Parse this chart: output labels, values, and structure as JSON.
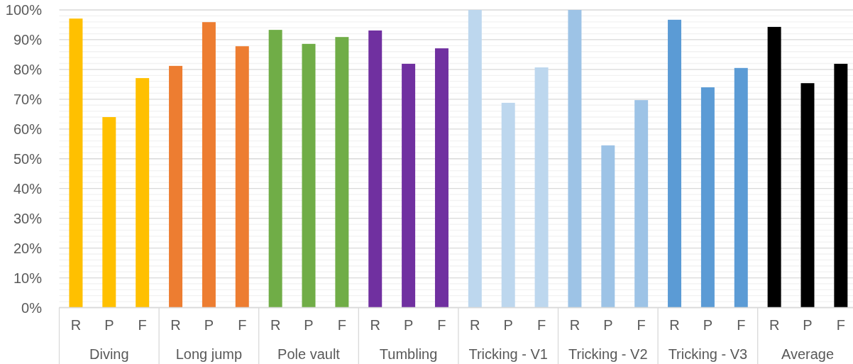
{
  "chart_data": {
    "type": "bar",
    "stacked": true,
    "categories": [
      "R",
      "P",
      "F",
      "R",
      "P",
      "F",
      "R",
      "P",
      "F",
      "R",
      "P",
      "F",
      "R",
      "P",
      "F",
      "R",
      "P",
      "F",
      "R",
      "P",
      "F",
      "R",
      "P",
      "F"
    ],
    "series": [
      {
        "name": "Diving",
        "color": "#ffc000",
        "values": [
          97.1,
          64.0,
          77.1,
          null,
          null,
          null,
          null,
          null,
          null,
          null,
          null,
          null,
          null,
          null,
          null,
          null,
          null,
          null,
          null,
          null,
          null,
          null,
          null,
          null
        ]
      },
      {
        "name": "Long jump",
        "color": "#ed7d31",
        "values": [
          null,
          null,
          null,
          81.2,
          95.9,
          87.8,
          null,
          null,
          null,
          null,
          null,
          null,
          null,
          null,
          null,
          null,
          null,
          null,
          null,
          null,
          null,
          null,
          null,
          null
        ]
      },
      {
        "name": "Pole vault",
        "color": "#70ad47",
        "values": [
          null,
          null,
          null,
          null,
          null,
          null,
          93.3,
          88.6,
          90.9,
          null,
          null,
          null,
          null,
          null,
          null,
          null,
          null,
          null,
          null,
          null,
          null,
          null,
          null,
          null
        ]
      },
      {
        "name": "Tumbling",
        "color": "#7030a0",
        "values": [
          null,
          null,
          null,
          null,
          null,
          null,
          null,
          null,
          null,
          93.1,
          81.9,
          87.1,
          null,
          null,
          null,
          null,
          null,
          null,
          null,
          null,
          null,
          null,
          null,
          null
        ]
      },
      {
        "name": "Tricking - V1",
        "color": "#bdd7ee",
        "values": [
          null,
          null,
          null,
          null,
          null,
          null,
          null,
          null,
          null,
          null,
          null,
          null,
          100,
          68.8,
          80.7,
          null,
          null,
          null,
          null,
          null,
          null,
          null,
          null,
          null
        ]
      },
      {
        "name": "Tricking - V2",
        "color": "#9dc3e6",
        "values": [
          null,
          null,
          null,
          null,
          null,
          null,
          null,
          null,
          null,
          null,
          null,
          null,
          null,
          null,
          null,
          100,
          54.5,
          69.7,
          null,
          null,
          null,
          null,
          null,
          null
        ]
      },
      {
        "name": "Tricking - V3",
        "color": "#5b9bd5",
        "values": [
          null,
          null,
          null,
          null,
          null,
          null,
          null,
          null,
          null,
          null,
          null,
          null,
          null,
          null,
          null,
          null,
          null,
          null,
          96.7,
          74.0,
          80.5,
          null,
          null,
          null
        ]
      },
      {
        "name": "Average",
        "color": "#000000",
        "values": [
          null,
          null,
          null,
          null,
          null,
          null,
          null,
          null,
          null,
          null,
          null,
          null,
          null,
          null,
          null,
          null,
          null,
          null,
          null,
          null,
          null,
          94.3,
          75.4,
          81.9
        ]
      }
    ],
    "ylim": [
      0,
      100
    ],
    "yticks": [
      {
        "value": 0,
        "label": "0%"
      },
      {
        "value": 2,
        "label": null
      },
      {
        "value": 4,
        "label": null
      },
      {
        "value": 6,
        "label": null
      },
      {
        "value": 8,
        "label": null
      },
      {
        "value": 10,
        "label": "10%"
      },
      {
        "value": 12,
        "label": null
      },
      {
        "value": 14,
        "label": null
      },
      {
        "value": 16,
        "label": null
      },
      {
        "value": 18,
        "label": null
      },
      {
        "value": 20,
        "label": "20%"
      },
      {
        "value": 22,
        "label": null
      },
      {
        "value": 24,
        "label": null
      },
      {
        "value": 26,
        "label": null
      },
      {
        "value": 28,
        "label": null
      },
      {
        "value": 30,
        "label": "30%"
      },
      {
        "value": 32,
        "label": null
      },
      {
        "value": 34,
        "label": null
      },
      {
        "value": 36,
        "label": null
      },
      {
        "value": 38,
        "label": null
      },
      {
        "value": 40,
        "label": "40%"
      },
      {
        "value": 42,
        "label": null
      },
      {
        "value": 44,
        "label": null
      },
      {
        "value": 46,
        "label": null
      },
      {
        "value": 48,
        "label": null
      },
      {
        "value": 50,
        "label": "50%"
      },
      {
        "value": 52,
        "label": null
      },
      {
        "value": 54,
        "label": null
      },
      {
        "value": 56,
        "label": null
      },
      {
        "value": 58,
        "label": null
      },
      {
        "value": 60,
        "label": "60%"
      },
      {
        "value": 62,
        "label": null
      },
      {
        "value": 64,
        "label": null
      },
      {
        "value": 66,
        "label": null
      },
      {
        "value": 68,
        "label": null
      },
      {
        "value": 70,
        "label": "70%"
      },
      {
        "value": 72,
        "label": null
      },
      {
        "value": 74,
        "label": null
      },
      {
        "value": 76,
        "label": null
      },
      {
        "value": 78,
        "label": null
      },
      {
        "value": 80,
        "label": "80%"
      },
      {
        "value": 82,
        "label": null
      },
      {
        "value": 84,
        "label": null
      },
      {
        "value": 86,
        "label": null
      },
      {
        "value": 88,
        "label": null
      },
      {
        "value": 90,
        "label": "90%"
      },
      {
        "value": 92,
        "label": null
      },
      {
        "value": 94,
        "label": null
      },
      {
        "value": 96,
        "label": null
      },
      {
        "value": 98,
        "label": null
      },
      {
        "value": 100,
        "label": "100%"
      }
    ],
    "grid": "y"
  }
}
